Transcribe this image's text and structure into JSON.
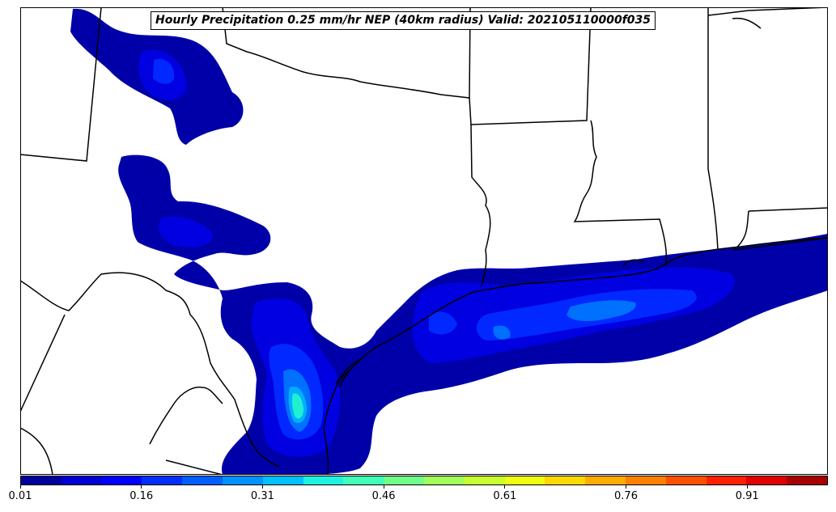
{
  "title": "Hourly Precipitation 0.25 mm/hr NEP (40km radius) Valid: 202105110000f035",
  "colorbar": {
    "colors": [
      "#00009c",
      "#0000d4",
      "#0000ff",
      "#0030ff",
      "#0060ff",
      "#0090ff",
      "#00c0ff",
      "#20f0e0",
      "#40ffb8",
      "#70ff88",
      "#a0ff58",
      "#c8ff30",
      "#f0ff10",
      "#ffd800",
      "#ffac00",
      "#ff8000",
      "#ff5000",
      "#ff2000",
      "#e00000",
      "#a80000"
    ],
    "tick_labels": [
      "0.01",
      "0.16",
      "0.31",
      "0.46",
      "0.61",
      "0.76",
      "0.91"
    ],
    "tick_values": [
      0.01,
      0.16,
      0.31,
      0.46,
      0.61,
      0.76,
      0.91
    ],
    "range": [
      0.01,
      1.01
    ]
  },
  "fill_levels": {
    "level1": "#0000a8",
    "level2": "#0000e0",
    "level3": "#0028ff",
    "level4": "#0070ff",
    "level5": "#00b0ff",
    "level6": "#20f0d0",
    "level7": "#40ffb0"
  }
}
